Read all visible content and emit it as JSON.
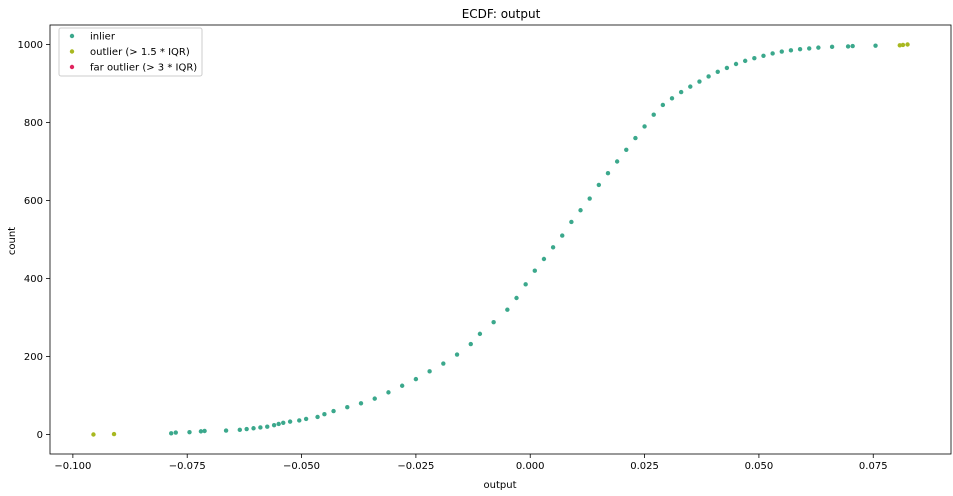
{
  "chart_data": {
    "type": "scatter",
    "title": "ECDF: output",
    "xlabel": "output",
    "ylabel": "count",
    "xlim": [
      -0.105,
      0.092
    ],
    "ylim": [
      -50,
      1050
    ],
    "xticks": [
      -0.1,
      -0.075,
      -0.05,
      -0.025,
      0.0,
      0.025,
      0.05,
      0.075
    ],
    "xtick_labels": [
      "−0.100",
      "−0.075",
      "−0.050",
      "−0.025",
      "0.000",
      "0.025",
      "0.050",
      "0.075"
    ],
    "yticks": [
      0,
      200,
      400,
      600,
      800,
      1000
    ],
    "ytick_labels": [
      "0",
      "200",
      "400",
      "600",
      "800",
      "1000"
    ],
    "grid": false,
    "legend_position": "top-left",
    "series": [
      {
        "name": "inlier",
        "color": "#3ba88c",
        "points": [
          [
            -0.0785,
            3
          ],
          [
            -0.0775,
            5
          ],
          [
            -0.0745,
            6
          ],
          [
            -0.072,
            8
          ],
          [
            -0.0712,
            9
          ],
          [
            -0.0665,
            10
          ],
          [
            -0.0635,
            12
          ],
          [
            -0.062,
            14
          ],
          [
            -0.0605,
            16
          ],
          [
            -0.059,
            18
          ],
          [
            -0.0575,
            20
          ],
          [
            -0.056,
            24
          ],
          [
            -0.055,
            27
          ],
          [
            -0.054,
            30
          ],
          [
            -0.0525,
            33
          ],
          [
            -0.0505,
            36
          ],
          [
            -0.049,
            40
          ],
          [
            -0.0465,
            45
          ],
          [
            -0.045,
            52
          ],
          [
            -0.043,
            60
          ],
          [
            -0.04,
            70
          ],
          [
            -0.037,
            80
          ],
          [
            -0.034,
            92
          ],
          [
            -0.031,
            108
          ],
          [
            -0.028,
            125
          ],
          [
            -0.025,
            142
          ],
          [
            -0.022,
            162
          ],
          [
            -0.019,
            182
          ],
          [
            -0.016,
            205
          ],
          [
            -0.013,
            232
          ],
          [
            -0.011,
            258
          ],
          [
            -0.008,
            288
          ],
          [
            -0.005,
            320
          ],
          [
            -0.003,
            350
          ],
          [
            -0.001,
            385
          ],
          [
            0.001,
            420
          ],
          [
            0.003,
            450
          ],
          [
            0.005,
            480
          ],
          [
            0.007,
            510
          ],
          [
            0.009,
            545
          ],
          [
            0.011,
            575
          ],
          [
            0.013,
            605
          ],
          [
            0.015,
            640
          ],
          [
            0.017,
            670
          ],
          [
            0.019,
            700
          ],
          [
            0.021,
            730
          ],
          [
            0.023,
            760
          ],
          [
            0.025,
            790
          ],
          [
            0.027,
            820
          ],
          [
            0.029,
            845
          ],
          [
            0.031,
            862
          ],
          [
            0.033,
            878
          ],
          [
            0.035,
            892
          ],
          [
            0.037,
            905
          ],
          [
            0.039,
            918
          ],
          [
            0.041,
            930
          ],
          [
            0.043,
            940
          ],
          [
            0.045,
            950
          ],
          [
            0.047,
            958
          ],
          [
            0.049,
            965
          ],
          [
            0.051,
            971
          ],
          [
            0.053,
            977
          ],
          [
            0.055,
            982
          ],
          [
            0.057,
            985
          ],
          [
            0.059,
            988
          ],
          [
            0.061,
            990
          ],
          [
            0.063,
            992
          ],
          [
            0.066,
            994
          ],
          [
            0.0695,
            995
          ],
          [
            0.0705,
            996
          ],
          [
            0.0755,
            997
          ]
        ]
      },
      {
        "name": "outlier (> 1.5 * IQR)",
        "color": "#a8b820",
        "points": [
          [
            -0.0955,
            0
          ],
          [
            -0.091,
            1
          ],
          [
            0.0808,
            998
          ],
          [
            0.0815,
            999
          ],
          [
            0.0825,
            1000
          ]
        ]
      },
      {
        "name": "far outlier (> 3 * IQR)",
        "color": "#e0245e",
        "points": []
      }
    ]
  }
}
